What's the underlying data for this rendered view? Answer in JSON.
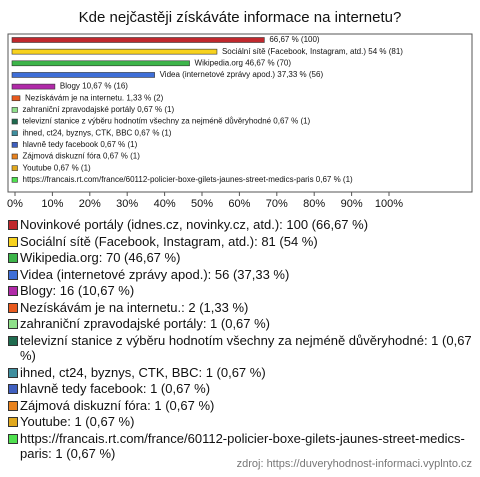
{
  "chart_data": {
    "type": "bar",
    "title": "Kde nejčastěji získáváte informace na internetu?",
    "categories": [
      "Novinkové portály (idnes.cz, novinky.cz, atd.): 100 (66,67 %)",
      "Sociální sítě (Facebook, Instagram, atd.): 81 (54 %)",
      "Wikipedia.org: 70 (46,67 %)",
      "Videa (internetové zprávy apod.): 56 (37,33 %)",
      "Blogy: 16 (10,67 %)",
      "Nezískávám je na internetu.: 2 (1,33 %)",
      "zahraniční zpravodajské portály: 1 (0,67 %)",
      "televizní stanice z výběru hodnotím všechny za nejméně důvěryhodné: 1 (0,67 %)",
      "ihned, ct24, byznys, CTK, BBC: 1 (0,67 %)",
      "hlavně tedy facebook: 1 (0,67 %)",
      "Zájmová diskuzní fóra: 1 (0,67 %)",
      "Youtube: 1 (0,67 %)",
      "https://francais.rt.com/france/60112-policier-boxe-gilets-jaunes-street-medics-paris: 1 (0,67 %)"
    ],
    "values": [
      66.67,
      54,
      46.67,
      37.33,
      10.67,
      1.33,
      0.67,
      0.67,
      0.67,
      0.67,
      0.67,
      0.67,
      0.67
    ],
    "value_labels": [
      "66,67 % (100)",
      "Sociální sítě (Facebook, Instagram, atd.) 54 % (81)",
      "Wikipedia.org 46,67 % (70)",
      "Videa (internetové zprávy apod.) 37,33 % (56)",
      "Blogy 10,67 % (16)",
      "Nezískávám je na internetu. 1,33 % (2)",
      "zahraniční zpravodajské portály 0,67 % (1)",
      "televizní stanice z výběru hodnotím všechny za nejméně důvěryhodné 0,67 % (1)",
      "ihned, ct24, byznys, CTK, BBC 0,67 % (1)",
      "hlavně tedy facebook 0,67 % (1)",
      "Zájmová diskuzní fóra 0,67 % (1)",
      "Youtube 0,67 % (1)",
      "https://francais.rt.com/france/60112-policier-boxe-gilets-jaunes-street-medics-paris 0,67 % (1)"
    ],
    "colors": [
      "#c0282d",
      "#f7d21e",
      "#3db54a",
      "#3f6fd8",
      "#b02aa8",
      "#e85a1e",
      "#8fe08a",
      "#1f6b4f",
      "#3f8e9e",
      "#3f5fbf",
      "#e8821e",
      "#e0a81e",
      "#4fe04f"
    ],
    "xlim": [
      0,
      100
    ],
    "xticks": [
      {
        "value": 0,
        "label": "0%"
      },
      {
        "value": 10,
        "label": "10%"
      },
      {
        "value": 20,
        "label": "20%"
      },
      {
        "value": 30,
        "label": "30%"
      },
      {
        "value": 40,
        "label": "40%"
      },
      {
        "value": 50,
        "label": "50%"
      },
      {
        "value": 60,
        "label": "60%"
      },
      {
        "value": 70,
        "label": "70%"
      },
      {
        "value": 80,
        "label": "80%"
      },
      {
        "value": 90,
        "label": "90%"
      },
      {
        "value": 100,
        "label": "100%"
      }
    ],
    "source": "zdroj: https://duveryhodnost-informaci.vyplnto.cz"
  }
}
